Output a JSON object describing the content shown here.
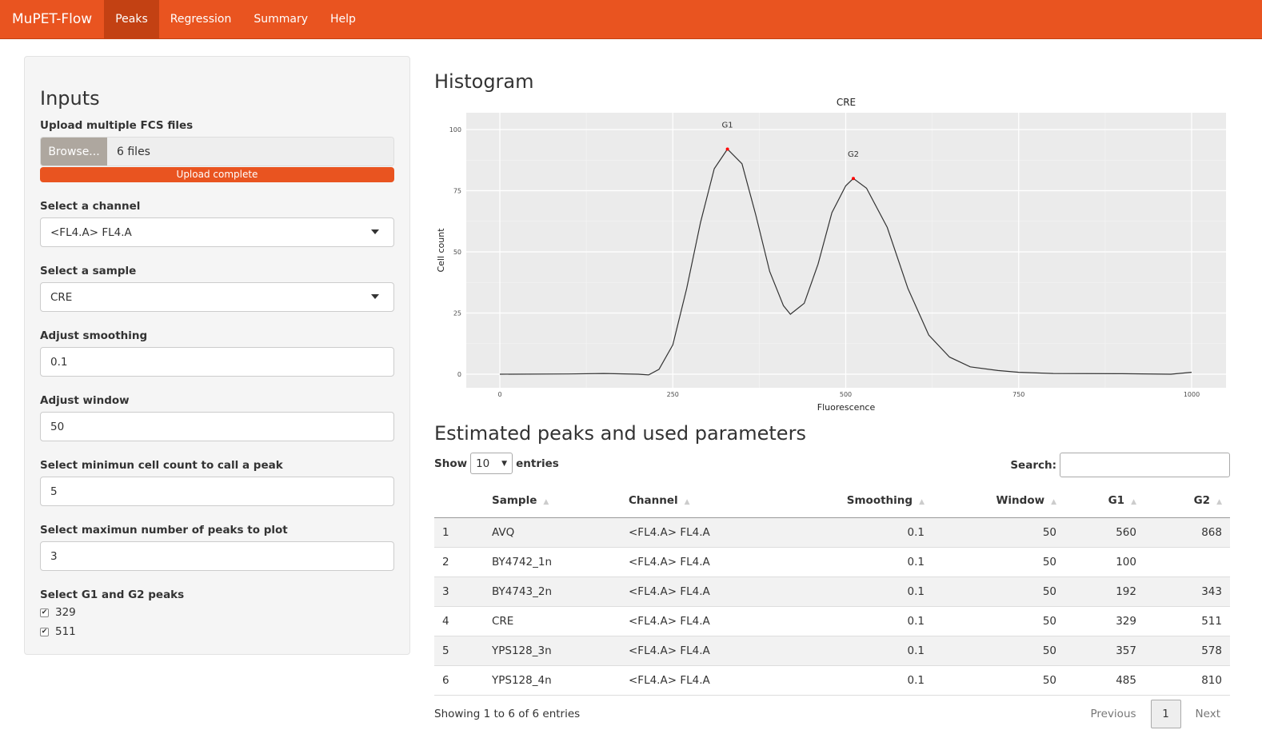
{
  "nav": {
    "brand": "MuPET-Flow",
    "tabs": [
      "Peaks",
      "Regression",
      "Summary",
      "Help"
    ],
    "active": "Peaks"
  },
  "inputs": {
    "title": "Inputs",
    "upload_label": "Upload multiple FCS files",
    "browse": "Browse...",
    "files": "6 files",
    "progress": "Upload complete",
    "progress_pct": 100,
    "channel_label": "Select a channel",
    "channel": "<FL4.A> FL4.A",
    "sample_label": "Select a sample",
    "sample": "CRE",
    "smoothing_label": "Adjust smoothing",
    "smoothing": "0.1",
    "window_label": "Adjust window",
    "window": "50",
    "mincount_label": "Select minimun cell count to call a peak",
    "mincount": "5",
    "maxpeaks_label": "Select maximun number of peaks to plot",
    "maxpeaks": "3",
    "peaks_label": "Select G1 and G2 peaks",
    "peaks": [
      {
        "label": "329",
        "checked": true
      },
      {
        "label": "511",
        "checked": true
      }
    ]
  },
  "histogram": {
    "heading": "Histogram"
  },
  "chart_data": {
    "type": "line",
    "title": "CRE",
    "xlabel": "Fluorescence",
    "ylabel": "Cell count",
    "xlim": [
      0,
      1000
    ],
    "ylim": [
      0,
      100
    ],
    "xticks": [
      "0",
      "250",
      "500",
      "750",
      "1000"
    ],
    "yticks": [
      "0",
      "25",
      "50",
      "75",
      "100"
    ],
    "grid": true,
    "line_color": "#333333",
    "peak_color": "#ff0000",
    "x": [
      0,
      100,
      150,
      200,
      215,
      230,
      250,
      270,
      290,
      310,
      329,
      350,
      370,
      390,
      410,
      420,
      440,
      460,
      480,
      500,
      511,
      530,
      560,
      590,
      620,
      650,
      680,
      720,
      750,
      800,
      900,
      970,
      1000
    ],
    "y": [
      0,
      0.1,
      0.3,
      0,
      -0.3,
      2,
      12,
      35,
      62,
      84,
      92,
      86,
      65,
      42,
      28,
      24.5,
      29,
      45,
      66,
      77,
      80,
      76,
      60,
      35,
      16,
      7,
      3,
      1.5,
      0.8,
      0.3,
      0.2,
      0,
      0.8
    ],
    "peaks": [
      {
        "label": "G1",
        "x": 329,
        "y": 92
      },
      {
        "label": "G2",
        "x": 511,
        "y": 80
      }
    ]
  },
  "table": {
    "heading": "Estimated peaks and used parameters",
    "show": "Show",
    "entries_value": "10",
    "entries": "entries",
    "search_label": "Search:",
    "columns": [
      "",
      "Sample",
      "Channel",
      "Smoothing",
      "Window",
      "G1",
      "G2"
    ],
    "rows": [
      [
        "1",
        "AVQ",
        "<FL4.A> FL4.A",
        "0.1",
        "50",
        "560",
        "868"
      ],
      [
        "2",
        "BY4742_1n",
        "<FL4.A> FL4.A",
        "0.1",
        "50",
        "100",
        ""
      ],
      [
        "3",
        "BY4743_2n",
        "<FL4.A> FL4.A",
        "0.1",
        "50",
        "192",
        "343"
      ],
      [
        "4",
        "CRE",
        "<FL4.A> FL4.A",
        "0.1",
        "50",
        "329",
        "511"
      ],
      [
        "5",
        "YPS128_3n",
        "<FL4.A> FL4.A",
        "0.1",
        "50",
        "357",
        "578"
      ],
      [
        "6",
        "YPS128_4n",
        "<FL4.A> FL4.A",
        "0.1",
        "50",
        "485",
        "810"
      ]
    ],
    "info": "Showing 1 to 6 of 6 entries",
    "previous": "Previous",
    "page": "1",
    "next": "Next"
  }
}
